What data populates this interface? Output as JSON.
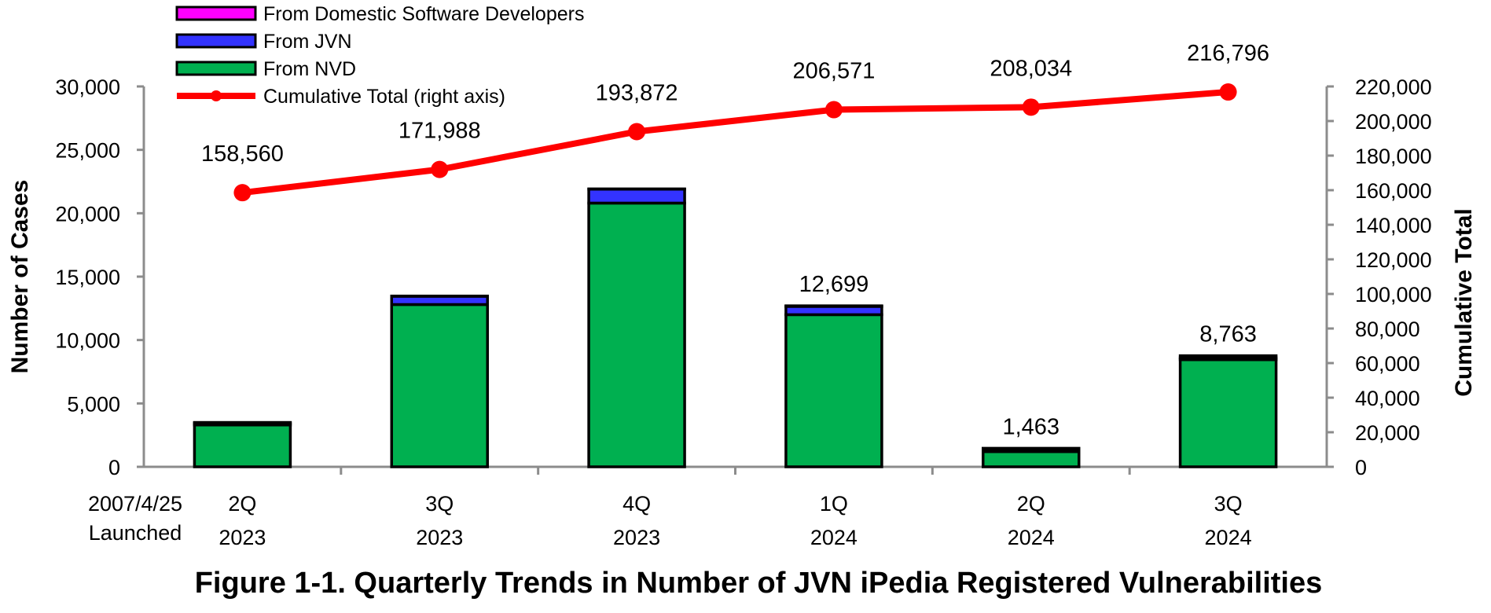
{
  "chart_data": {
    "type": "bar",
    "title": "Figure 1-1. Quarterly Trends in Number of JVN iPedia Registered Vulnerabilities",
    "categories": [
      [
        "2Q",
        "2023"
      ],
      [
        "3Q",
        "2023"
      ],
      [
        "4Q",
        "2023"
      ],
      [
        "1Q",
        "2024"
      ],
      [
        "2Q",
        "2024"
      ],
      [
        "3Q",
        "2024"
      ]
    ],
    "launch_note": [
      "2007/4/25",
      "Launched"
    ],
    "stacked": true,
    "ylabel": "Number of Cases",
    "ylabel_right": "Cumulative Total",
    "ylim": [
      0,
      30000
    ],
    "yticks": [
      0,
      5000,
      10000,
      15000,
      20000,
      25000,
      30000
    ],
    "ylim_right": [
      0,
      220000
    ],
    "yticks_right": [
      0,
      20000,
      40000,
      60000,
      80000,
      100000,
      120000,
      140000,
      160000,
      180000,
      200000,
      220000
    ],
    "series": [
      {
        "name": "From NVD",
        "color": "#00b050",
        "values": [
          3300,
          12800,
          20800,
          12000,
          1200,
          8450
        ]
      },
      {
        "name": "From JVN",
        "color": "#3333ff",
        "values": [
          150,
          650,
          1100,
          650,
          80,
          150
        ]
      },
      {
        "name": "From Domestic Software Developers",
        "color": "#ff00ff",
        "values": [
          50,
          20,
          20,
          49,
          183,
          163
        ]
      }
    ],
    "bar_totals_labels": [
      "",
      "",
      "",
      "12,699",
      "1,463",
      "8,763"
    ],
    "line_series": {
      "name": "Cumulative Total (right axis)",
      "color": "#ff0000",
      "axis": "right",
      "values": [
        158560,
        171988,
        193872,
        206571,
        208034,
        216796
      ],
      "labels": [
        "158,560",
        "171,988",
        "193,872",
        "206,571",
        "208,034",
        "216,796"
      ]
    },
    "legend": {
      "position": "top-left",
      "entries": [
        "From Domestic Software Developers",
        "From JVN",
        "From NVD",
        "Cumulative Total (right axis)"
      ]
    },
    "grid": false,
    "axis_color": "#8c8c8c"
  }
}
